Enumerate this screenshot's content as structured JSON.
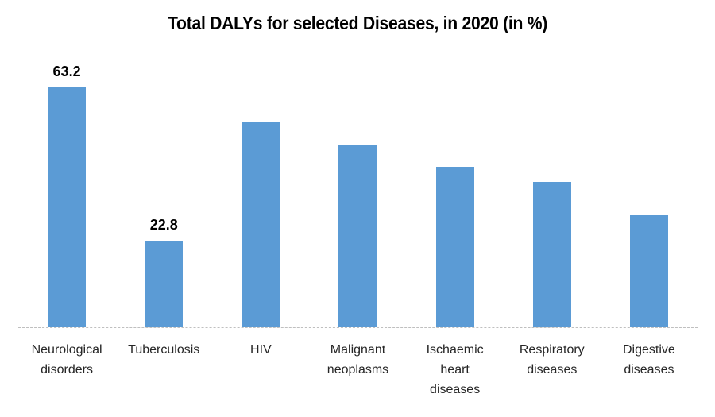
{
  "chart_data": {
    "type": "bar",
    "title": "Total DALYs for selected Diseases, in 2020 (in %)",
    "categories": [
      "Neurological disorders",
      "Tuberculosis",
      "HIV",
      "Malignant neoplasms",
      "Ischaemic heart diseases",
      "Respiratory diseases",
      "Digestive diseases"
    ],
    "category_lines": [
      [
        "Neurological",
        "disorders"
      ],
      [
        "Tuberculosis"
      ],
      [
        "HIV"
      ],
      [
        "Malignant",
        "neoplasms"
      ],
      [
        "Ischaemic",
        "heart",
        "diseases"
      ],
      [
        "Respiratory",
        "diseases"
      ],
      [
        "Digestive",
        "diseases"
      ]
    ],
    "values": [
      63.2,
      22.8,
      54.3,
      48.1,
      42.3,
      38.2,
      29.5
    ],
    "value_labels": [
      "63.2",
      "22.8",
      "",
      "",
      "",
      "",
      ""
    ],
    "bar_color": "#5B9BD5",
    "axis_line_color": "#BFBFBF",
    "title_color": "#000000",
    "category_label_color": "#262626",
    "value_label_color": "#000000",
    "grid": false,
    "legend": false
  }
}
